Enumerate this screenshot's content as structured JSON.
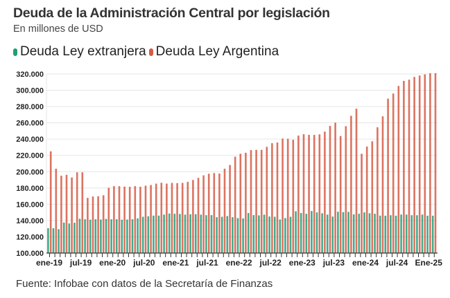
{
  "header": {
    "title": "Deuda de la Administración Central por legislación",
    "subtitle": "En millones de USD"
  },
  "legend": [
    {
      "label": "Deuda Ley extranjera",
      "color": "#1f9e78"
    },
    {
      "label": "Deuda Ley Argentina",
      "color": "#d65a44"
    }
  ],
  "footer": {
    "source": "Fuente: Infobae con datos de la Secretaría de Finanzas"
  },
  "chart_data": {
    "type": "bar",
    "title": "Deuda de la Administración Central por legislación",
    "subtitle": "En millones de USD",
    "xlabel": "",
    "ylabel": "",
    "ylim": [
      100000,
      320000
    ],
    "yticks": [
      100000,
      120000,
      140000,
      160000,
      180000,
      200000,
      220000,
      240000,
      260000,
      280000,
      300000,
      320000
    ],
    "ytick_labels": [
      "100.000",
      "120.000",
      "140.000",
      "160.000",
      "180.000",
      "200.000",
      "220.000",
      "240.000",
      "260.000",
      "280.000",
      "300.000",
      "320.000"
    ],
    "grid": true,
    "legend_position": "top-left",
    "xtick_labels": [
      {
        "index": 0,
        "label": "ene-19"
      },
      {
        "index": 6,
        "label": "jul-19"
      },
      {
        "index": 12,
        "label": "ene-20"
      },
      {
        "index": 18,
        "label": "jul-20"
      },
      {
        "index": 24,
        "label": "ene-21"
      },
      {
        "index": 30,
        "label": "jul-21"
      },
      {
        "index": 36,
        "label": "ene-22"
      },
      {
        "index": 42,
        "label": "jul-22"
      },
      {
        "index": 48,
        "label": "ene-23"
      },
      {
        "index": 54,
        "label": "jul-23"
      },
      {
        "index": 60,
        "label": "ene-24"
      },
      {
        "index": 66,
        "label": "jul-24"
      },
      {
        "index": 72,
        "label": "Ene-25"
      }
    ],
    "categories": [
      "ene-19",
      "feb-19",
      "mar-19",
      "abr-19",
      "may-19",
      "jun-19",
      "jul-19",
      "ago-19",
      "sep-19",
      "oct-19",
      "nov-19",
      "dic-19",
      "ene-20",
      "feb-20",
      "mar-20",
      "abr-20",
      "may-20",
      "jun-20",
      "jul-20",
      "ago-20",
      "sep-20",
      "oct-20",
      "nov-20",
      "dic-20",
      "ene-21",
      "feb-21",
      "mar-21",
      "abr-21",
      "may-21",
      "jun-21",
      "jul-21",
      "ago-21",
      "sep-21",
      "oct-21",
      "nov-21",
      "dic-21",
      "ene-22",
      "feb-22",
      "mar-22",
      "abr-22",
      "may-22",
      "jun-22",
      "jul-22",
      "ago-22",
      "sep-22",
      "oct-22",
      "nov-22",
      "dic-22",
      "ene-23",
      "feb-23",
      "mar-23",
      "abr-23",
      "may-23",
      "jun-23",
      "jul-23",
      "ago-23",
      "sep-23",
      "oct-23",
      "nov-23",
      "dic-23",
      "ene-24",
      "feb-24",
      "mar-24",
      "abr-24",
      "may-24",
      "jun-24",
      "jul-24",
      "ago-24",
      "sep-24",
      "oct-24",
      "nov-24",
      "dic-24",
      "ene-25",
      "feb-25"
    ],
    "series": [
      {
        "name": "Deuda Ley extranjera",
        "color": "#1f9e78",
        "values": [
          130500,
          130500,
          129400,
          137500,
          136400,
          137300,
          142100,
          141500,
          141000,
          141500,
          141200,
          142000,
          141500,
          141500,
          141000,
          141200,
          141500,
          142600,
          144600,
          145200,
          146000,
          146000,
          147200,
          148600,
          148300,
          148000,
          147200,
          147700,
          147700,
          147200,
          146600,
          146600,
          144100,
          144600,
          145500,
          144100,
          143000,
          142600,
          149200,
          146600,
          146300,
          147200,
          144900,
          144600,
          141200,
          143000,
          144600,
          151300,
          149200,
          148300,
          151700,
          150000,
          148900,
          147200,
          144900,
          150800,
          150300,
          150600,
          147500,
          148300,
          150000,
          148900,
          148300,
          146000,
          145900,
          146500,
          145900,
          147300,
          147300,
          146500,
          146500,
          147300,
          145900,
          145900
        ]
      },
      {
        "name": "Deuda Ley Argentina",
        "color": "#d65a44",
        "values": [
          224900,
          203600,
          195000,
          196100,
          192900,
          199200,
          199200,
          167800,
          169500,
          169800,
          171000,
          180200,
          182200,
          182200,
          181600,
          181400,
          182200,
          181400,
          182800,
          183600,
          185300,
          186400,
          185300,
          186200,
          185900,
          186200,
          187500,
          189800,
          192400,
          195500,
          197500,
          198300,
          197700,
          203600,
          208200,
          218400,
          222000,
          223200,
          226500,
          226800,
          226800,
          230500,
          235000,
          235800,
          240700,
          240400,
          239200,
          244300,
          246000,
          245200,
          245200,
          245800,
          249200,
          256200,
          260200,
          243800,
          255900,
          268600,
          277400,
          222000,
          230800,
          237300,
          254500,
          268000,
          289700,
          296000,
          305300,
          311500,
          313000,
          316400,
          318100,
          319500,
          321000,
          321000
        ]
      }
    ]
  }
}
